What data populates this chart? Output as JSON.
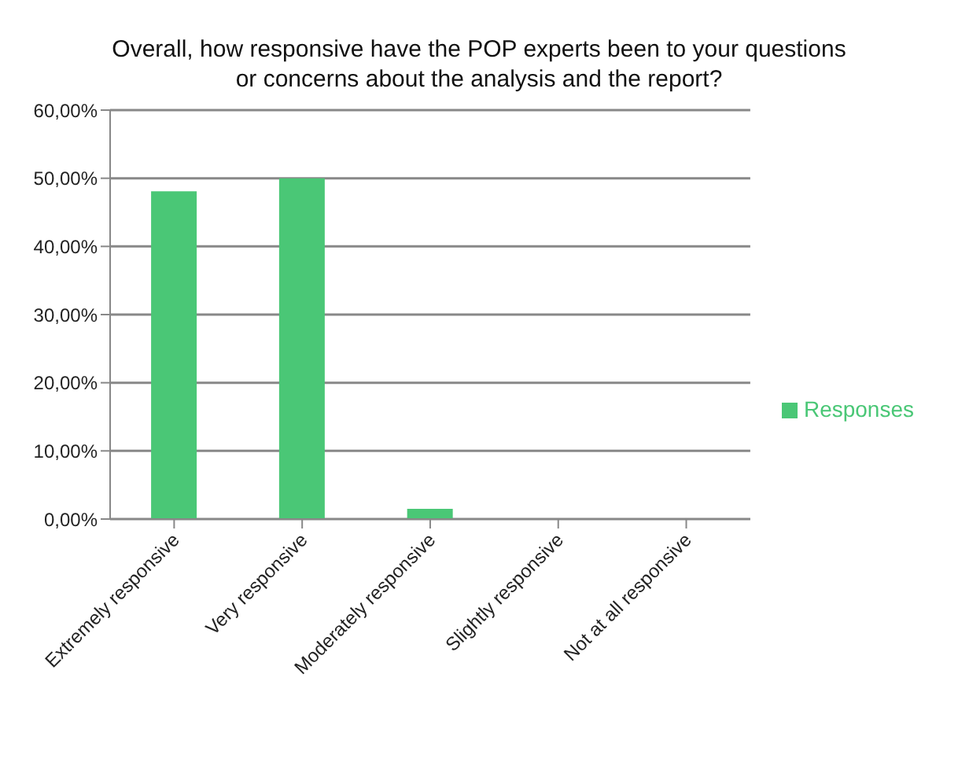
{
  "chart_data": {
    "type": "bar",
    "title": "Overall, how responsive have the POP experts been to your questions or concerns about the analysis and the report?",
    "categories": [
      "Extremely responsive",
      "Very responsive",
      "Moderately responsive",
      "Slightly responsive",
      "Not at all responsive"
    ],
    "series": [
      {
        "name": "Responses",
        "color": "#4ac776",
        "values": [
          48.1,
          50,
          1.5,
          0,
          0
        ]
      }
    ],
    "ylim": [
      0,
      60
    ],
    "yticks": [
      {
        "value": 0,
        "label": "0,00%"
      },
      {
        "value": 10,
        "label": "10,00%"
      },
      {
        "value": 20,
        "label": "20,00%"
      },
      {
        "value": 30,
        "label": "30,00%"
      },
      {
        "value": 40,
        "label": "40,00%"
      },
      {
        "value": 50,
        "label": "50,00%"
      },
      {
        "value": 60,
        "label": "60,00%"
      }
    ],
    "grid": "y",
    "legend": "right"
  }
}
